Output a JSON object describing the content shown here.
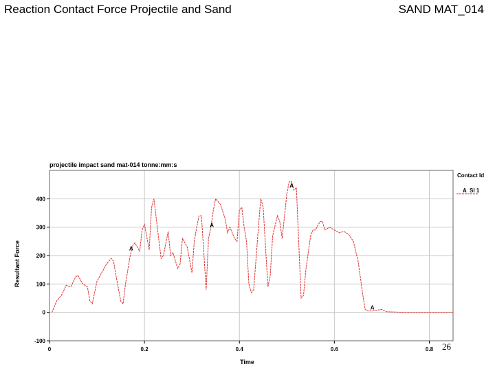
{
  "slide": {
    "title": "Reaction Contact Force Projectile and Sand",
    "tag": "SAND MAT_014",
    "page_number": "26"
  },
  "chart_data": {
    "type": "line",
    "title": "projectile impact sand mat-014 tonne:mm:s",
    "xlabel": "Time",
    "ylabel": "Resultant Force",
    "xlim": [
      0,
      0.85
    ],
    "ylim": [
      -100,
      500
    ],
    "x_ticks": [
      0,
      0.2,
      0.4,
      0.6,
      0.8
    ],
    "x_tick_labels": [
      "0",
      "0.2",
      "0.4",
      "0.6",
      "0.8"
    ],
    "y_ticks": [
      -100,
      0,
      100,
      200,
      300,
      400
    ],
    "y_tick_labels": [
      "-100",
      "0",
      "100",
      "200",
      "300",
      "400"
    ],
    "grid": true,
    "legend_position": "right",
    "legend_title": "Contact Id",
    "series": [
      {
        "name": "SI 1",
        "marker": "A",
        "color": "#e03030",
        "marker_points": [
          [
            0.172,
            218
          ],
          [
            0.342,
            300
          ],
          [
            0.51,
            440
          ],
          [
            0.68,
            10
          ]
        ],
        "x": [
          0.005,
          0.015,
          0.025,
          0.035,
          0.045,
          0.055,
          0.06,
          0.07,
          0.08,
          0.085,
          0.09,
          0.1,
          0.11,
          0.12,
          0.13,
          0.135,
          0.14,
          0.15,
          0.155,
          0.16,
          0.17,
          0.175,
          0.18,
          0.19,
          0.195,
          0.2,
          0.21,
          0.215,
          0.22,
          0.23,
          0.235,
          0.24,
          0.25,
          0.255,
          0.26,
          0.27,
          0.275,
          0.28,
          0.29,
          0.3,
          0.305,
          0.31,
          0.315,
          0.32,
          0.33,
          0.335,
          0.34,
          0.345,
          0.35,
          0.36,
          0.37,
          0.375,
          0.38,
          0.39,
          0.395,
          0.4,
          0.405,
          0.41,
          0.415,
          0.42,
          0.425,
          0.43,
          0.44,
          0.445,
          0.45,
          0.46,
          0.465,
          0.47,
          0.48,
          0.485,
          0.49,
          0.5,
          0.505,
          0.51,
          0.515,
          0.52,
          0.53,
          0.535,
          0.54,
          0.55,
          0.555,
          0.56,
          0.57,
          0.575,
          0.58,
          0.59,
          0.6,
          0.61,
          0.62,
          0.63,
          0.64,
          0.65,
          0.66,
          0.665,
          0.67,
          0.68,
          0.69,
          0.7,
          0.71,
          0.75,
          0.8,
          0.85
        ],
        "y": [
          0,
          40,
          60,
          95,
          90,
          125,
          130,
          100,
          90,
          40,
          30,
          110,
          140,
          170,
          190,
          180,
          130,
          40,
          30,
          100,
          200,
          235,
          245,
          215,
          290,
          310,
          220,
          370,
          400,
          260,
          190,
          200,
          285,
          200,
          210,
          155,
          170,
          260,
          230,
          140,
          250,
          300,
          340,
          340,
          80,
          260,
          300,
          360,
          400,
          380,
          330,
          280,
          300,
          260,
          250,
          360,
          370,
          300,
          250,
          100,
          70,
          80,
          300,
          400,
          370,
          90,
          130,
          270,
          340,
          320,
          260,
          420,
          460,
          460,
          430,
          440,
          50,
          60,
          150,
          270,
          290,
          290,
          320,
          320,
          290,
          300,
          290,
          280,
          285,
          275,
          250,
          180,
          60,
          10,
          5,
          5,
          8,
          10,
          2,
          0,
          0,
          0
        ]
      }
    ]
  }
}
